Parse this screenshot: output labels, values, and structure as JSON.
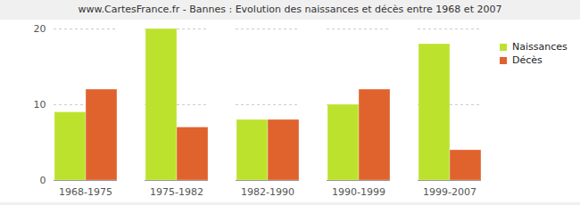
{
  "chart_data": {
    "type": "bar",
    "title": "www.CartesFrance.fr - Bannes : Evolution des naissances et décès entre 1968 et 2007",
    "categories": [
      "1968-1975",
      "1975-1982",
      "1982-1990",
      "1990-1999",
      "1999-2007"
    ],
    "series": [
      {
        "name": "Naissances",
        "color": "#bde22e",
        "values": [
          9,
          20,
          8,
          10,
          18
        ]
      },
      {
        "name": "Décès",
        "color": "#e0632e",
        "values": [
          12,
          7,
          8,
          12,
          4
        ]
      }
    ],
    "ylim": [
      0,
      20
    ],
    "yticks": [
      0,
      10,
      20
    ],
    "grid": true,
    "legend": "top-right"
  }
}
